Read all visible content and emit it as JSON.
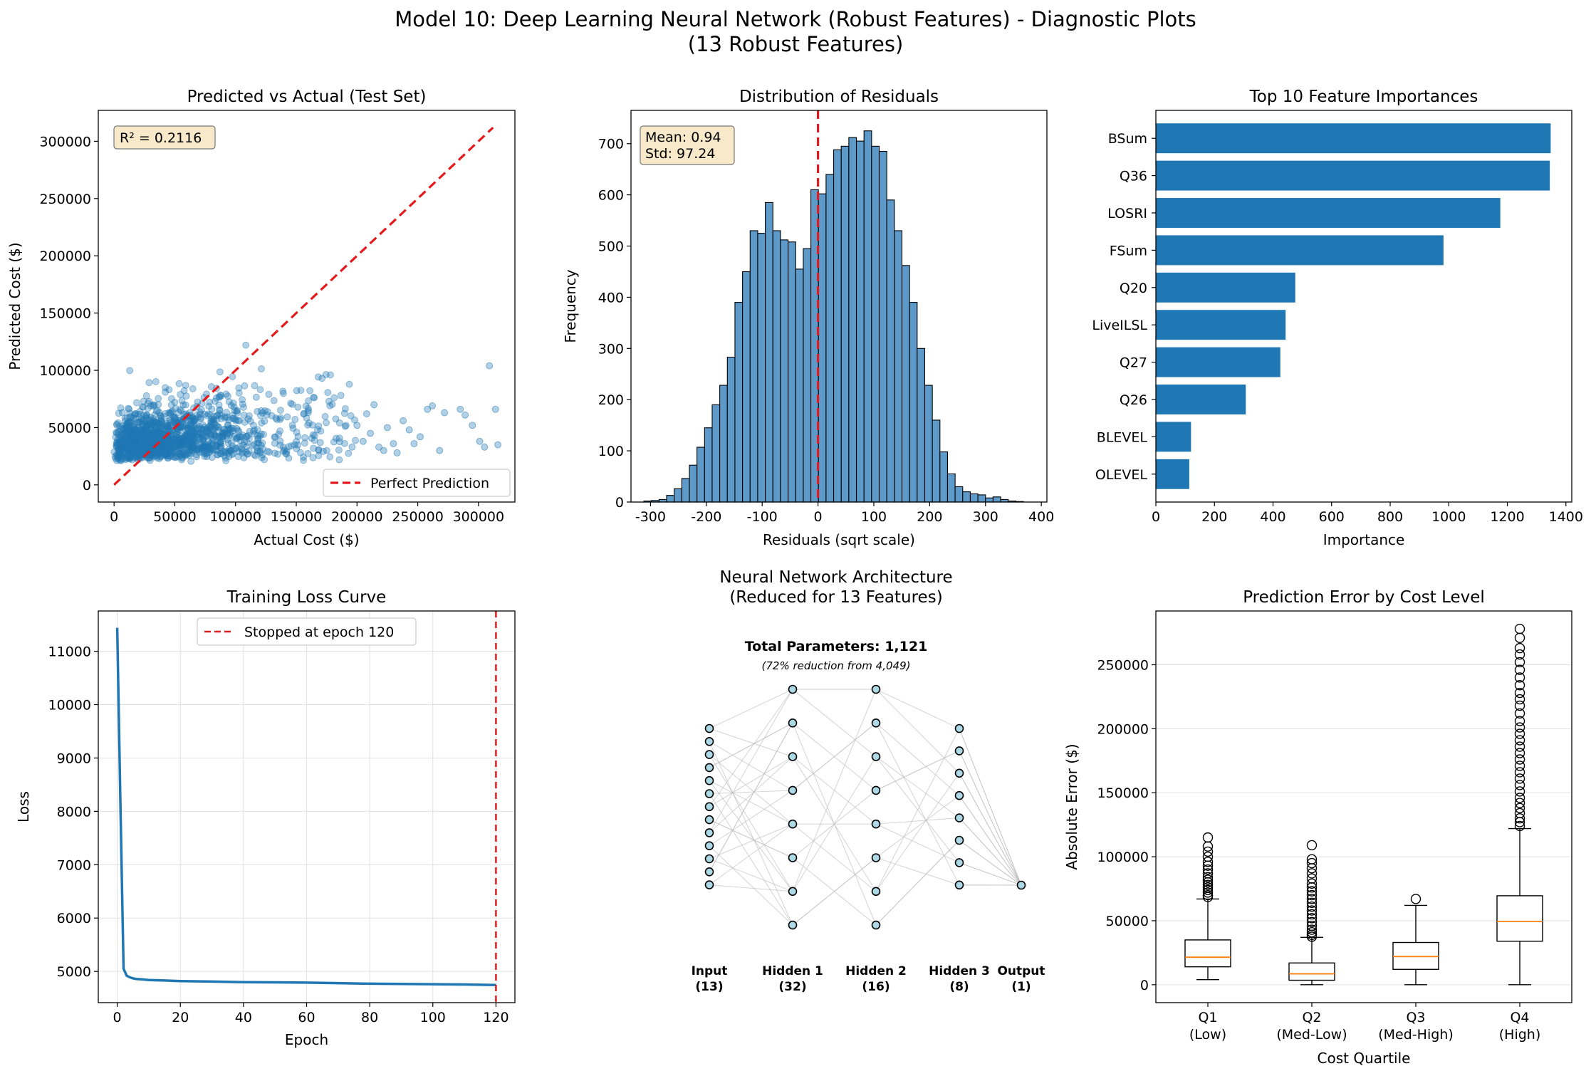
{
  "figure": {
    "title_line1": "Model 10: Deep Learning Neural Network (Robust Features) - Diagnostic Plots",
    "title_line2": "(13 Robust Features)"
  },
  "chart_data": [
    {
      "id": "scatter",
      "type": "scatter",
      "title": "Predicted vs Actual (Test Set)",
      "xlabel": "Actual Cost ($)",
      "ylabel": "Predicted Cost ($)",
      "xlim": [
        -13000,
        330000
      ],
      "ylim": [
        -15000,
        327000
      ],
      "xticks": [
        0,
        50000,
        100000,
        150000,
        200000,
        250000,
        300000
      ],
      "yticks": [
        0,
        50000,
        100000,
        150000,
        200000,
        250000,
        300000
      ],
      "r2_label": "R² = 0.2116",
      "legend": "Perfect Prediction",
      "legend_position": "lower-right",
      "perfect_line": [
        [
          0,
          0
        ],
        [
          312000,
          312000
        ]
      ],
      "color": "#1f77b4",
      "outlier_points": [
        [
          258000,
          66000
        ],
        [
          262000,
          69000
        ],
        [
          272000,
          63000
        ],
        [
          285000,
          66000
        ],
        [
          289000,
          61000
        ],
        [
          295000,
          52000
        ],
        [
          301000,
          38000
        ],
        [
          305000,
          33000
        ],
        [
          309000,
          104000
        ],
        [
          314000,
          66000
        ],
        [
          316000,
          35000
        ],
        [
          268000,
          30000
        ],
        [
          247000,
          36000
        ],
        [
          243000,
          48000
        ],
        [
          238000,
          56000
        ],
        [
          252000,
          42000
        ],
        [
          230000,
          36000
        ],
        [
          225000,
          50000
        ],
        [
          218000,
          33000
        ],
        [
          211000,
          45000
        ],
        [
          205000,
          38000
        ],
        [
          200000,
          52000
        ],
        [
          196000,
          33000
        ],
        [
          208000,
          62000
        ],
        [
          214000,
          70000
        ],
        [
          222000,
          30000
        ],
        [
          233000,
          28000
        ]
      ]
    },
    {
      "id": "histogram",
      "type": "bar",
      "title": "Distribution of Residuals",
      "xlabel": "Residuals (sqrt scale)",
      "ylabel": "Frequency",
      "xlim": [
        -335,
        410
      ],
      "ylim": [
        0,
        765
      ],
      "xticks": [
        -300,
        -200,
        -100,
        0,
        100,
        200,
        300,
        400
      ],
      "yticks": [
        0,
        100,
        200,
        300,
        400,
        500,
        600,
        700
      ],
      "stats_label_1": "Mean: 0.94",
      "stats_label_2": "Std: 97.24",
      "bin_start": -312,
      "bin_width": 13.6,
      "values": [
        2,
        3,
        5,
        13,
        26,
        46,
        72,
        107,
        145,
        190,
        228,
        283,
        390,
        450,
        530,
        525,
        585,
        530,
        512,
        508,
        455,
        495,
        610,
        602,
        640,
        688,
        695,
        712,
        705,
        725,
        695,
        685,
        590,
        530,
        462,
        390,
        300,
        228,
        160,
        98,
        55,
        30,
        20,
        16,
        14,
        8,
        10,
        5,
        2,
        1
      ],
      "mean_line": 0,
      "color": "#5d9ac9",
      "edge": "#000000"
    },
    {
      "id": "importance",
      "type": "bar",
      "orientation": "horizontal",
      "title": "Top 10 Feature Importances",
      "xlabel": "Importance",
      "xlim": [
        0,
        1420
      ],
      "xticks": [
        0,
        200,
        400,
        600,
        800,
        1000,
        1200,
        1400
      ],
      "categories": [
        "BSum",
        "Q36",
        "LOSRI",
        "FSum",
        "Q20",
        "LiveILSL",
        "Q27",
        "Q26",
        "BLEVEL",
        "OLEVEL"
      ],
      "values": [
        1348,
        1345,
        1176,
        982,
        476,
        443,
        425,
        307,
        120,
        114
      ],
      "color": "#1f77b4"
    },
    {
      "id": "loss",
      "type": "line",
      "title": "Training Loss Curve",
      "xlabel": "Epoch",
      "ylabel": "Loss",
      "xlim": [
        -6,
        126
      ],
      "ylim": [
        4415,
        11755
      ],
      "xticks": [
        0,
        20,
        40,
        60,
        80,
        100,
        120
      ],
      "yticks": [
        5000,
        6000,
        7000,
        8000,
        9000,
        10000,
        11000
      ],
      "x": [
        0,
        1,
        2,
        3,
        4,
        5,
        6,
        8,
        10,
        15,
        20,
        30,
        40,
        50,
        60,
        70,
        80,
        90,
        100,
        110,
        120
      ],
      "y": [
        11440,
        8200,
        5050,
        4920,
        4890,
        4870,
        4860,
        4850,
        4840,
        4830,
        4820,
        4810,
        4800,
        4795,
        4790,
        4780,
        4770,
        4765,
        4760,
        4755,
        4745
      ],
      "stop_epoch": 120,
      "legend": "Stopped at epoch 120",
      "legend_position": "top-center",
      "color": "#1f77b4"
    },
    {
      "id": "architecture",
      "type": "diagram",
      "title_line1": "Neural Network Architecture",
      "title_line2": "(Reduced for 13 Features)",
      "total_params": "Total Parameters: 1,121",
      "reduction": "(72% reduction from 4,049)",
      "layers": [
        {
          "name": "Input",
          "size": "(13)",
          "nodes_drawn": 13
        },
        {
          "name": "Hidden 1",
          "size": "(32)",
          "nodes_drawn": 8
        },
        {
          "name": "Hidden 2",
          "size": "(16)",
          "nodes_drawn": 8
        },
        {
          "name": "Hidden 3",
          "size": "(8)",
          "nodes_drawn": 8
        },
        {
          "name": "Output",
          "size": "(1)",
          "nodes_drawn": 1
        }
      ]
    },
    {
      "id": "boxplot",
      "type": "box",
      "title": "Prediction Error by Cost Level",
      "xlabel": "Cost Quartile",
      "ylabel": "Absolute Error ($)",
      "ylim": [
        -14000,
        292000
      ],
      "yticks": [
        0,
        50000,
        100000,
        150000,
        200000,
        250000
      ],
      "categories": [
        {
          "label": "Q1",
          "sub": "(Low)"
        },
        {
          "label": "Q2",
          "sub": "(Med-Low)"
        },
        {
          "label": "Q3",
          "sub": "(Med-High)"
        },
        {
          "label": "Q4",
          "sub": "(High)"
        }
      ],
      "boxes": [
        {
          "min": 4000,
          "q1": 14000,
          "median": 21500,
          "q3": 35000,
          "max": 67000,
          "outliers": [
            115000,
            108000,
            104000,
            100000,
            96000,
            93000,
            90000,
            87000,
            84000,
            82000,
            80000,
            78000,
            76000,
            74000,
            72000,
            70000,
            68500
          ]
        },
        {
          "min": 0,
          "q1": 3500,
          "median": 8500,
          "q3": 17000,
          "max": 37000,
          "outliers": [
            109000,
            98000,
            95000,
            91000,
            87000,
            83000,
            79000,
            76000,
            73000,
            70000,
            67000,
            64000,
            61000,
            58000,
            55000,
            52000,
            49000,
            46000,
            43000,
            41000,
            39000,
            37500
          ]
        },
        {
          "min": 0,
          "q1": 12000,
          "median": 22000,
          "q3": 33000,
          "max": 62000,
          "outliers": [
            67000
          ]
        },
        {
          "min": 0,
          "q1": 34000,
          "median": 49500,
          "q3": 69500,
          "max": 122000,
          "outliers": [
            278000,
            271000,
            263000,
            258000,
            252000,
            246000,
            240000,
            234000,
            228000,
            223000,
            218000,
            212000,
            206000,
            201000,
            196000,
            191000,
            186000,
            181000,
            176000,
            171000,
            166000,
            161000,
            156000,
            151000,
            146000,
            142000,
            138000,
            134000,
            130000,
            127000,
            124000
          ]
        }
      ]
    }
  ],
  "colors": {
    "primary": "#1f77b4",
    "red": "#e41a1c",
    "median": "#ff7f0e",
    "annot_bg": "#f7e9c9",
    "grid": "#e0e0e0"
  }
}
